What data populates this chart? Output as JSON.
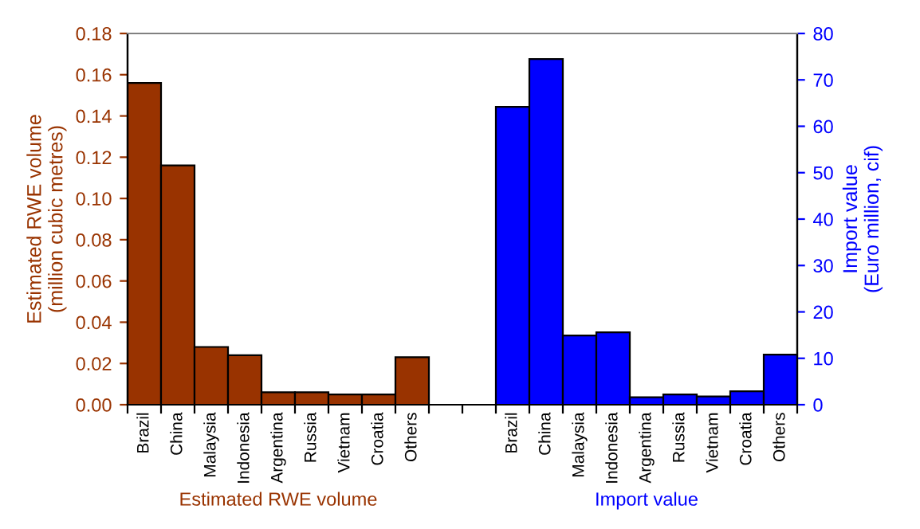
{
  "chart_data": {
    "type": "bar",
    "categories": [
      "Brazil",
      "China",
      "Malaysia",
      "Indonesia",
      "Argentina",
      "Russia",
      "Vietnam",
      "Croatia",
      "Others",
      null,
      null,
      "Brazil",
      "China",
      "Malaysia",
      "Indonesia",
      "Argentina",
      "Russia",
      "Vietnam",
      "Croatia",
      "Others"
    ],
    "ylabel": "Estimated RWE volume\n(million cubic metres)",
    "y2label": "Import value\n(Euro million, cif)",
    "ylim": [
      0,
      0.18
    ],
    "yticks": [
      {
        "value": 0,
        "label": "0.00"
      },
      {
        "value": 0.02,
        "label": "0.02"
      },
      {
        "value": 0.04,
        "label": "0.04"
      },
      {
        "value": 0.06,
        "label": "0.06"
      },
      {
        "value": 0.08,
        "label": "0.08"
      },
      {
        "value": 0.1,
        "label": "0.10"
      },
      {
        "value": 0.12,
        "label": "0.12"
      },
      {
        "value": 0.14,
        "label": "0.14"
      },
      {
        "value": 0.16,
        "label": "0.16"
      },
      {
        "value": 0.18,
        "label": "0.18"
      }
    ],
    "y2lim": [
      0,
      80
    ],
    "y2ticks": [
      0,
      10,
      20,
      30,
      40,
      50,
      60,
      70,
      80
    ],
    "series": [
      {
        "name": "Estimated RWE volume",
        "color": "#993300",
        "values": [
          0.156,
          0.116,
          0.028,
          0.024,
          0.006,
          0.006,
          0.005,
          0.005,
          0.023,
          null,
          null,
          null,
          null,
          null,
          null,
          null,
          null,
          null,
          null,
          null
        ]
      },
      {
        "name": "Import value",
        "color": "#0000ff",
        "axis": "y2",
        "values": [
          null,
          null,
          null,
          null,
          null,
          null,
          null,
          null,
          null,
          null,
          null,
          64.2,
          74.5,
          14.9,
          15.6,
          1.6,
          2.2,
          1.8,
          2.9,
          10.8
        ]
      }
    ],
    "grid": false,
    "legend": false
  }
}
